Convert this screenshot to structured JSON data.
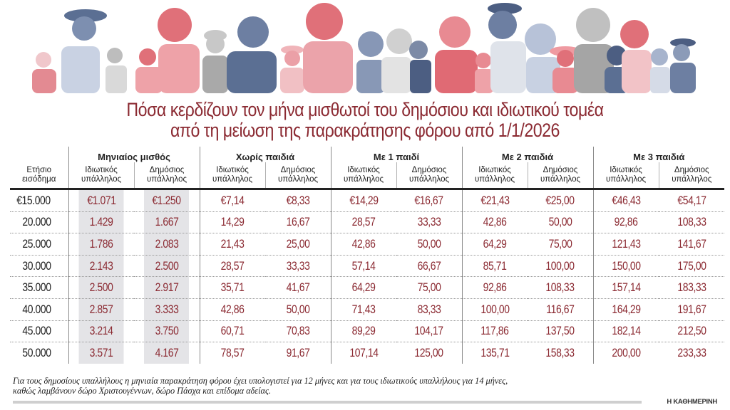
{
  "title": {
    "line1": "Πόσα κερδίζουν τον μήνα μισθωτοί του δημόσιου και ιδιωτικού τομέα",
    "line2": "από τη μείωση της παρακράτησης φόρου από 1/1/2026"
  },
  "table": {
    "row_header": "Ετήσιο εισόδημα",
    "row_header_line1": "Ετήσιο",
    "row_header_line2": "εισόδημα",
    "groups": [
      "Μηνιαίος μισθός",
      "Χωρίς παιδιά",
      "Με 1 παιδί",
      "Με 2 παιδιά",
      "Με 3 παιδιά"
    ],
    "sub_private_line1": "Ιδιωτικός",
    "sub_public_line1": "Δημόσιος",
    "sub_line2": "υπάλληλος",
    "rows": [
      {
        "income": "€15.000",
        "values": [
          "€1.071",
          "€1.250",
          "€7,14",
          "€8,33",
          "€14,29",
          "€16,67",
          "€21,43",
          "€25,00",
          "€46,43",
          "€54,17"
        ]
      },
      {
        "income": "20.000",
        "values": [
          "1.429",
          "1.667",
          "14,29",
          "16,67",
          "28,57",
          "33,33",
          "42,86",
          "50,00",
          "92,86",
          "108,33"
        ]
      },
      {
        "income": "25.000",
        "values": [
          "1.786",
          "2.083",
          "21,43",
          "25,00",
          "42,86",
          "50,00",
          "64,29",
          "75,00",
          "121,43",
          "141,67"
        ]
      },
      {
        "income": "30.000",
        "values": [
          "2.143",
          "2.500",
          "28,57",
          "33,33",
          "57,14",
          "66,67",
          "85,71",
          "100,00",
          "150,00",
          "175,00"
        ]
      },
      {
        "income": "35.000",
        "values": [
          "2.500",
          "2.917",
          "35,71",
          "41,67",
          "64,29",
          "75,00",
          "92,86",
          "108,33",
          "157,14",
          "183,33"
        ]
      },
      {
        "income": "40.000",
        "values": [
          "2.857",
          "3.333",
          "42,86",
          "50,00",
          "71,43",
          "83,33",
          "100,00",
          "116,67",
          "164,29",
          "191,67"
        ]
      },
      {
        "income": "45.000",
        "values": [
          "3.214",
          "3.750",
          "60,71",
          "70,83",
          "89,29",
          "104,17",
          "117,86",
          "137,50",
          "182,14",
          "212,50"
        ]
      },
      {
        "income": "50.000",
        "values": [
          "3.571",
          "4.167",
          "78,57",
          "91,67",
          "107,14",
          "125,00",
          "135,71",
          "158,33",
          "200,00",
          "233,33"
        ]
      }
    ]
  },
  "footnote": {
    "line1": "Για τους δημοσίους υπαλλήλους η μηνιαία παρακράτηση φόρου έχει υπολογιστεί για 12 μήνες και για τους ιδιωτικούς υπαλλήλους για 14 μήνες,",
    "line2": "καθώς λαμβάνουν δώρο Χριστουγέννων, δώρο Πάσχα και επίδομα αδείας."
  },
  "source": "Η ΚΑΘΗΜΕΡΙΝΗ",
  "colors": {
    "accent": "#8b2a32",
    "red_figure": "#e0707a",
    "blue_figure": "#5b6f93",
    "gray_figure": "#b9b9b9",
    "shade": "#e4e4e7"
  },
  "chart_data": {
    "type": "table",
    "title": "Πόσα κερδίζουν τον μήνα μισθωτοί του δημόσιου και ιδιωτικού τομέα από τη μείωση της παρακράτησης φόρου από 1/1/2026",
    "row_label": "Ετήσιο εισόδημα (€)",
    "categories": [
      15000,
      20000,
      25000,
      30000,
      35000,
      40000,
      45000,
      50000
    ],
    "series": [
      {
        "name": "Μηνιαίος μισθός - Ιδιωτικός υπάλληλος",
        "values": [
          1071,
          1429,
          1786,
          2143,
          2500,
          2857,
          3214,
          3571
        ]
      },
      {
        "name": "Μηνιαίος μισθός - Δημόσιος υπάλληλος",
        "values": [
          1250,
          1667,
          2083,
          2500,
          2917,
          3333,
          3750,
          4167
        ]
      },
      {
        "name": "Χωρίς παιδιά - Ιδιωτικός υπάλληλος",
        "values": [
          7.14,
          14.29,
          21.43,
          28.57,
          35.71,
          42.86,
          60.71,
          78.57
        ]
      },
      {
        "name": "Χωρίς παιδιά - Δημόσιος υπάλληλος",
        "values": [
          8.33,
          16.67,
          25.0,
          33.33,
          41.67,
          50.0,
          70.83,
          91.67
        ]
      },
      {
        "name": "Με 1 παιδί - Ιδιωτικός υπάλληλος",
        "values": [
          14.29,
          28.57,
          42.86,
          57.14,
          64.29,
          71.43,
          89.29,
          107.14
        ]
      },
      {
        "name": "Με 1 παιδί - Δημόσιος υπάλληλος",
        "values": [
          16.67,
          33.33,
          50.0,
          66.67,
          75.0,
          83.33,
          104.17,
          125.0
        ]
      },
      {
        "name": "Με 2 παιδιά - Ιδιωτικός υπάλληλος",
        "values": [
          21.43,
          42.86,
          64.29,
          85.71,
          92.86,
          100.0,
          117.86,
          135.71
        ]
      },
      {
        "name": "Με 2 παιδιά - Δημόσιος υπάλληλος",
        "values": [
          25.0,
          50.0,
          75.0,
          100.0,
          108.33,
          116.67,
          137.5,
          158.33
        ]
      },
      {
        "name": "Με 3 παιδιά - Ιδιωτικός υπάλληλος",
        "values": [
          46.43,
          92.86,
          121.43,
          150.0,
          157.14,
          164.29,
          182.14,
          200.0
        ]
      },
      {
        "name": "Με 3 παιδιά - Δημόσιος υπάλληλος",
        "values": [
          54.17,
          108.33,
          141.67,
          175.0,
          183.33,
          191.67,
          212.5,
          233.33
        ]
      }
    ],
    "units": "€ per month",
    "note": "Για τους δημοσίους υπαλλήλους η μηνιαία παρακράτηση φόρου έχει υπολογιστεί για 12 μήνες και για τους ιδιωτικούς υπαλλήλους για 14 μήνες, καθώς λαμβάνουν δώρο Χριστουγέννων, δώρο Πάσχα και επίδομα αδείας.",
    "source": "Η ΚΑΘΗΜΕΡΙΝΗ"
  }
}
